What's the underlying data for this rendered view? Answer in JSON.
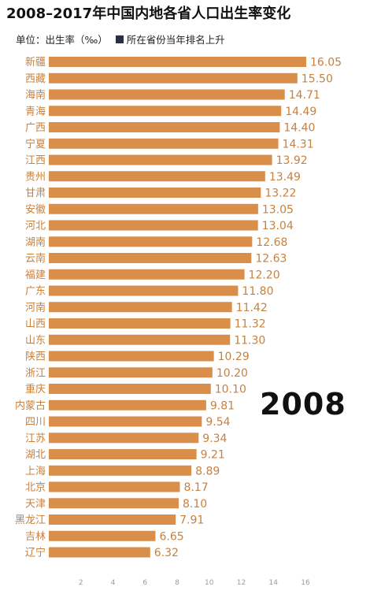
{
  "title": "2008–2017年中国内地各省人口出生率变化",
  "subtitle": {
    "unit_label": "单位：出生率（‰）",
    "legend_label": "所在省份当年排名上升"
  },
  "year_label": "2008",
  "colors": {
    "bar": "#d98e4a",
    "label_text": "#c7813f",
    "value_text": "#c7813f",
    "legend": "#2a2f45",
    "axis_text": "#9a9a9a"
  },
  "chart_data": {
    "type": "bar",
    "orientation": "horizontal",
    "categories": [
      "新疆",
      "西藏",
      "海南",
      "青海",
      "广西",
      "宁夏",
      "江西",
      "贵州",
      "甘肃",
      "安徽",
      "河北",
      "湖南",
      "云南",
      "福建",
      "广东",
      "河南",
      "山西",
      "山东",
      "陕西",
      "浙江",
      "重庆",
      "内蒙古",
      "四川",
      "江苏",
      "湖北",
      "上海",
      "北京",
      "天津",
      "黑龙江",
      "吉林",
      "辽宁"
    ],
    "values": [
      16.05,
      15.5,
      14.71,
      14.49,
      14.4,
      14.31,
      13.92,
      13.49,
      13.22,
      13.05,
      13.04,
      12.68,
      12.63,
      12.2,
      11.8,
      11.42,
      11.32,
      11.3,
      10.29,
      10.2,
      10.1,
      9.81,
      9.54,
      9.34,
      9.21,
      8.89,
      8.17,
      8.1,
      7.91,
      6.65,
      6.32
    ],
    "value_labels": [
      "16.05",
      "15.50",
      "14.71",
      "14.49",
      "14.40",
      "14.31",
      "13.92",
      "13.49",
      "13.22",
      "13.05",
      "13.04",
      "12.68",
      "12.63",
      "12.20",
      "11.80",
      "11.42",
      "11.32",
      "11.30",
      "10.29",
      "10.20",
      "10.10",
      "9.81",
      "9.54",
      "9.34",
      "9.21",
      "8.89",
      "8.17",
      "8.10",
      "7.91",
      "6.65",
      "6.32"
    ],
    "x_ticks": [
      "2",
      "4",
      "6",
      "8",
      "10",
      "12",
      "14",
      "16"
    ],
    "x_tick_values": [
      2,
      4,
      6,
      8,
      10,
      12,
      14,
      16
    ],
    "xlim": [
      0,
      16.05
    ],
    "title": "2008–2017年中国内地各省人口出生率变化",
    "xlabel": "",
    "ylabel": "",
    "grid": false
  }
}
